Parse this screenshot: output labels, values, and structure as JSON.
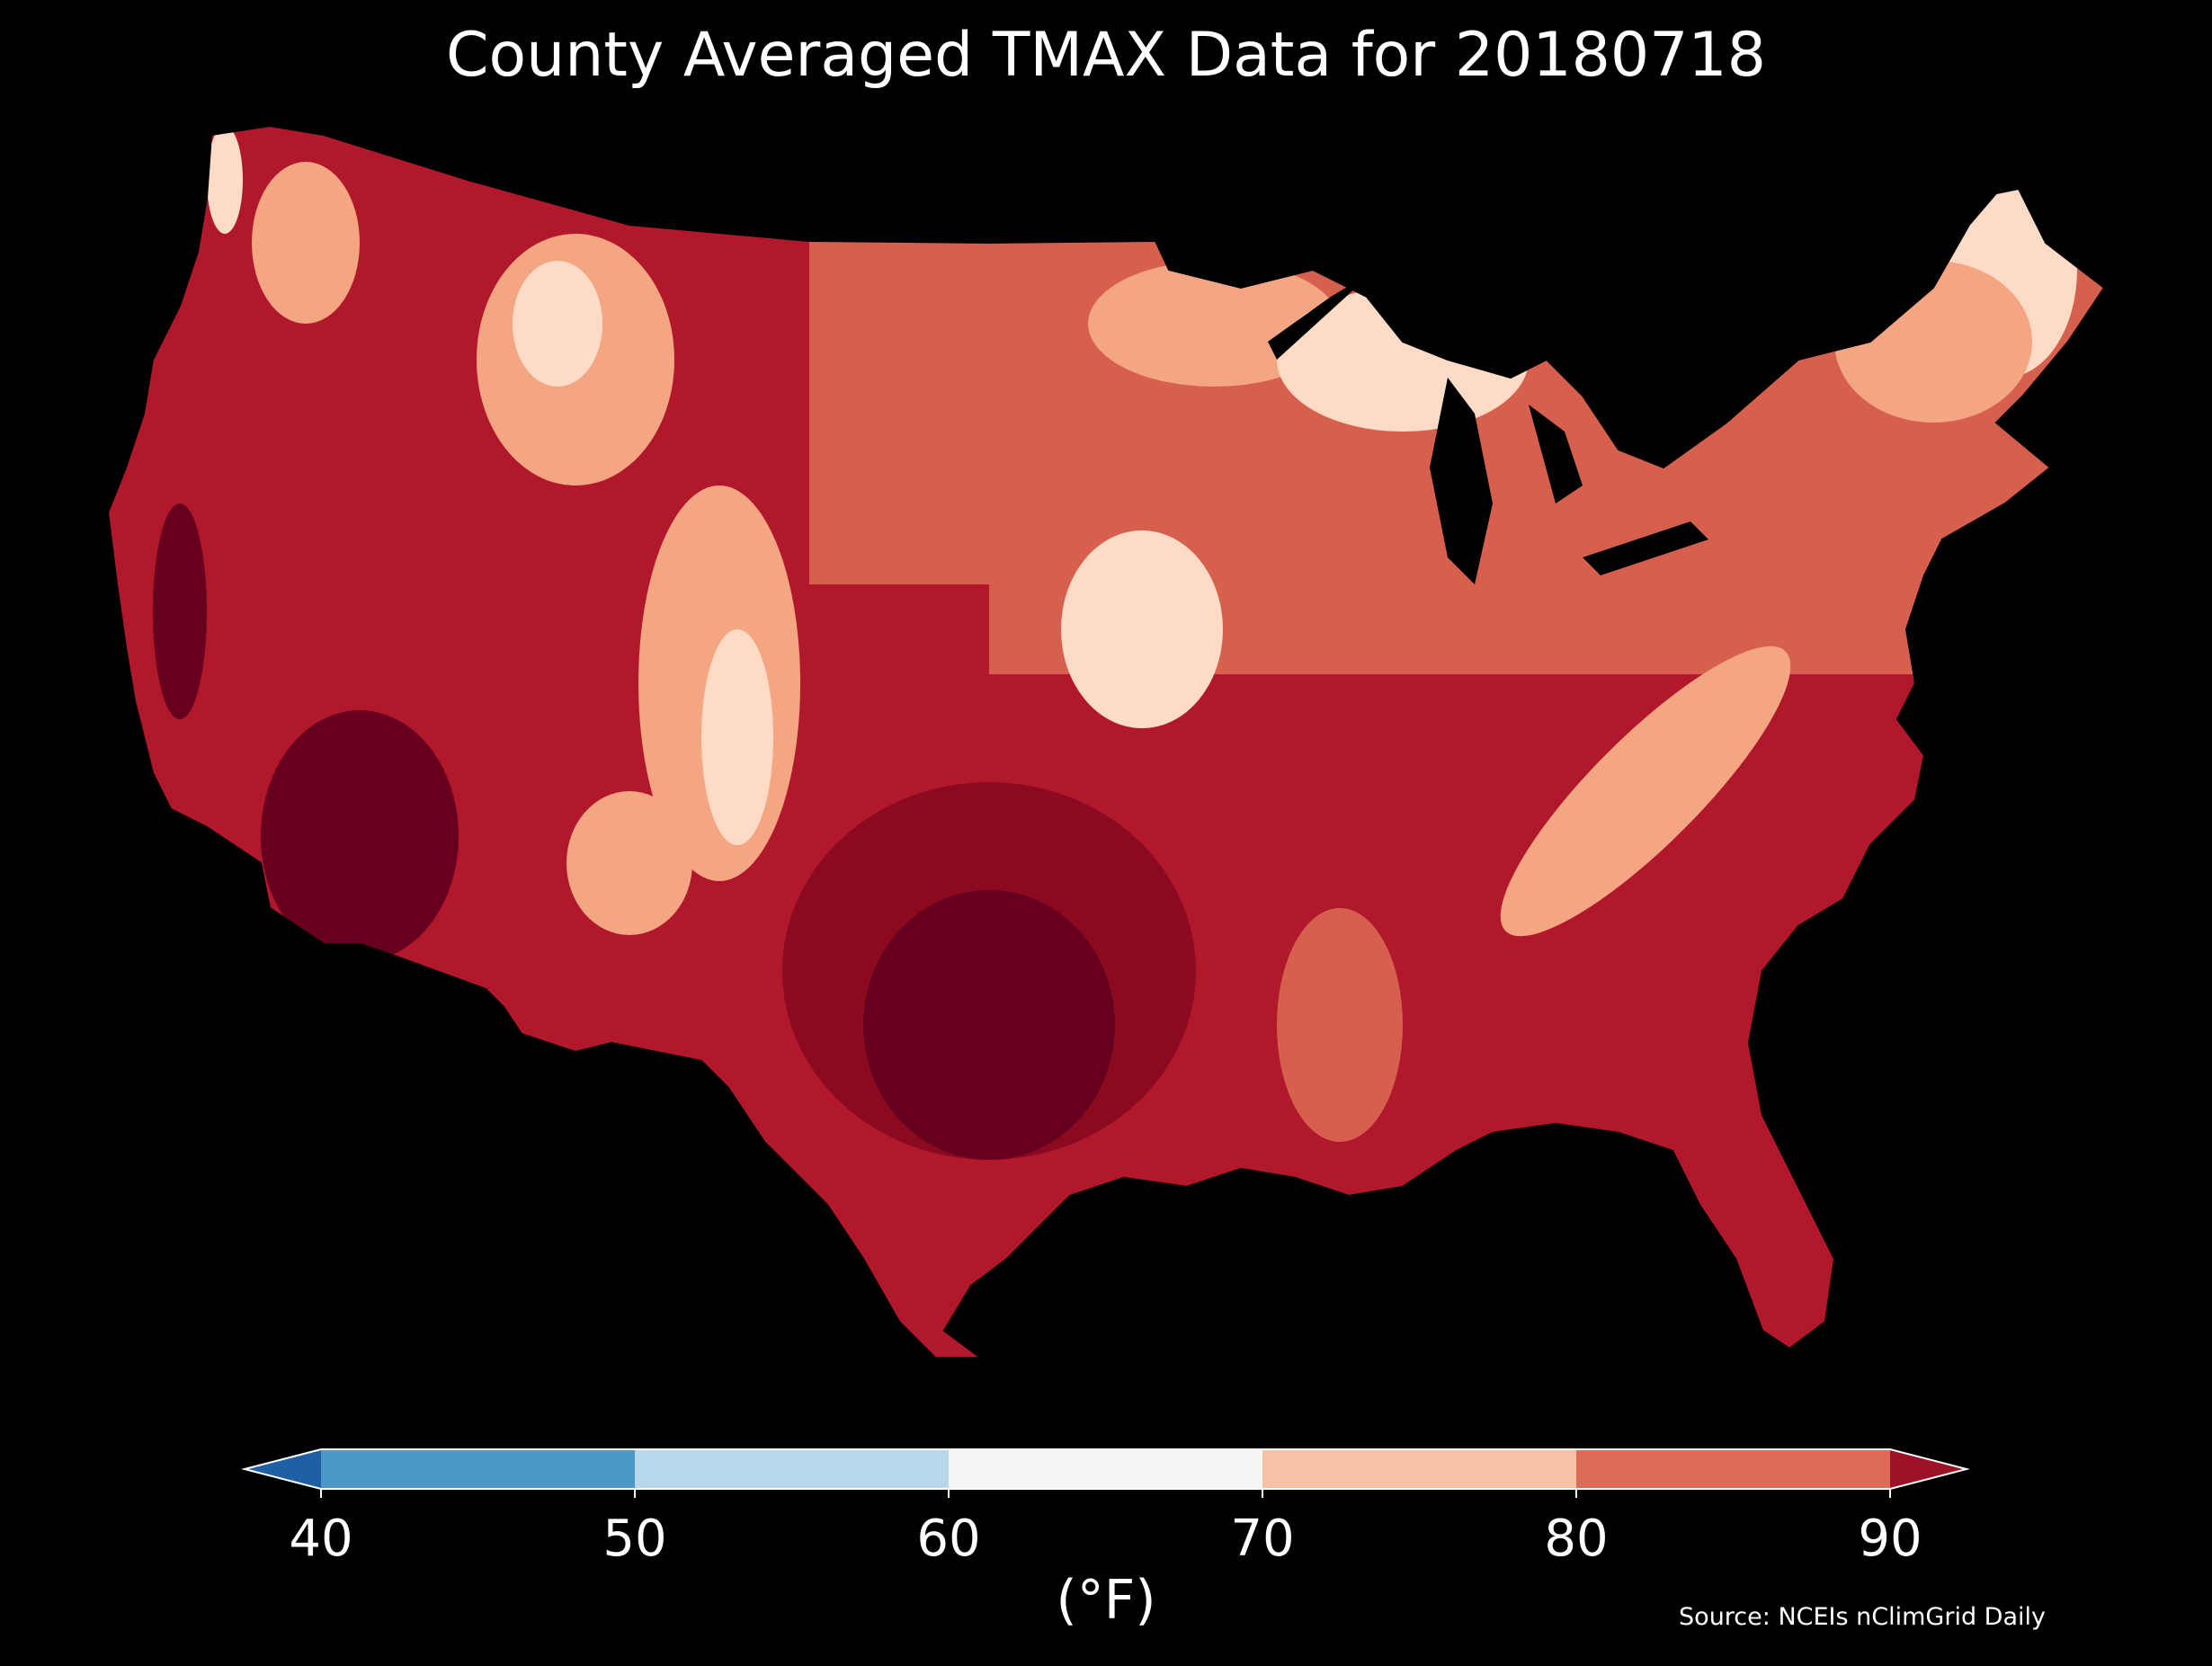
{
  "title": "County Averaged TMAX Data for 20180718",
  "colorbar": {
    "unit": "(°F)",
    "ticks": [
      "40",
      "50",
      "60",
      "70",
      "80",
      "90"
    ],
    "bins": [
      {
        "from": 30,
        "to": 40,
        "color": "#1f5fa5"
      },
      {
        "from": 40,
        "to": 50,
        "color": "#4c98c9"
      },
      {
        "from": 50,
        "to": 60,
        "color": "#b7d8ea"
      },
      {
        "from": 60,
        "to": 70,
        "color": "#f5f5f5"
      },
      {
        "from": 70,
        "to": 80,
        "color": "#f7c1a6"
      },
      {
        "from": 80,
        "to": 90,
        "color": "#dc6b58"
      },
      {
        "from": 90,
        "to": 100,
        "color": "#9e1226"
      }
    ]
  },
  "source": "Source: NCEIs nClimGrid Daily",
  "map_colors": {
    "hottest": "#67001f",
    "hot": "#b2182b",
    "warm": "#d6604d",
    "mild": "#f4a582",
    "cool": "#fddbc7",
    "coolest": "#f7f7f7",
    "background": "#000000"
  }
}
